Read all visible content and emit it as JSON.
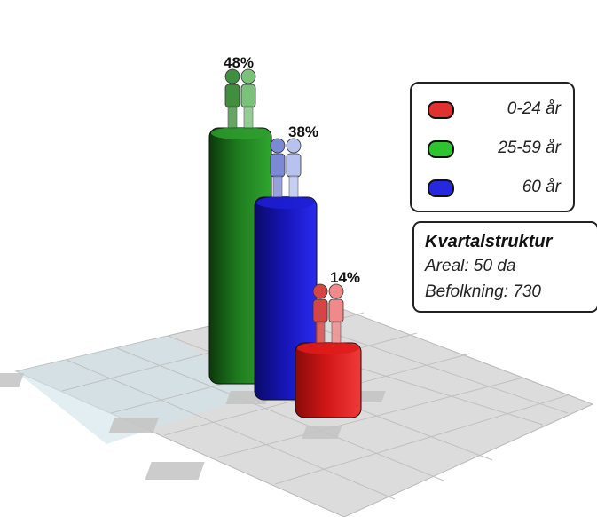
{
  "chart_data": {
    "type": "bar",
    "categories": [
      "0-24 år",
      "25-59 år",
      "60 år"
    ],
    "series": [
      {
        "name": "25-59 år",
        "value": 48,
        "label": "48%",
        "color": "#2e9e2e"
      },
      {
        "name": "60 år",
        "value": 38,
        "label": "38%",
        "color": "#1f1fd6"
      },
      {
        "name": "0-24 år",
        "value": 14,
        "label": "14%",
        "color": "#e01b1b"
      }
    ],
    "unit": "%"
  },
  "legend": {
    "items": [
      {
        "label": "0-24 år",
        "color": "#e03030"
      },
      {
        "label": "25-59 år",
        "color": "#2ec42e"
      },
      {
        "label": "60 år",
        "color": "#2727e0"
      }
    ]
  },
  "info": {
    "title": "Kvartalstruktur",
    "areal": "Areal: 50 da",
    "befolkning": "Befolkning: 730"
  }
}
